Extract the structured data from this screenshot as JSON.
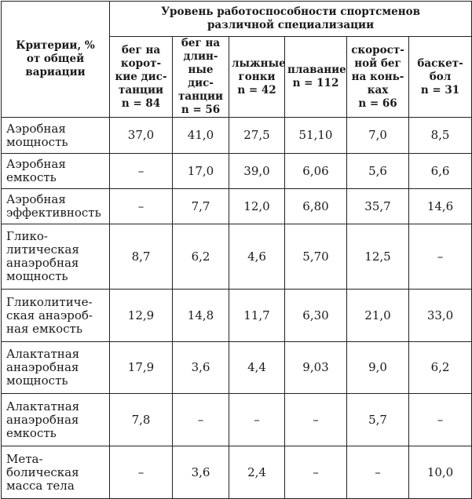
{
  "table": {
    "criteria_header": "Критерии, % от общей вариации",
    "group_header": "Уровень работоспособности спортсменов различной специализации",
    "columns": [
      {
        "label": "бег на корот-кие дис-танции",
        "n": "n = 84"
      },
      {
        "label": "бег на длин-ные дис-танции",
        "n": "n = 56"
      },
      {
        "label": "лыжные гонки",
        "n": "n = 42"
      },
      {
        "label": "плавание",
        "n": "n = 112"
      },
      {
        "label": "скорост-ной бег на конь-ках",
        "n": "n = 66"
      },
      {
        "label": "баскет-бол",
        "n": "n = 31"
      }
    ],
    "rows": [
      {
        "criterion": "Аэробная мощность",
        "values": [
          "37,0",
          "41,0",
          "27,5",
          "51,10",
          "7,0",
          "8,5"
        ]
      },
      {
        "criterion": "Аэробная емкость",
        "values": [
          "–",
          "17,0",
          "39,0",
          "6,06",
          "5,6",
          "6,6"
        ]
      },
      {
        "criterion": "Аэробная эффективность",
        "values": [
          "–",
          "7,7",
          "12,0",
          "6,80",
          "35,7",
          "14,6"
        ]
      },
      {
        "criterion": "Глико-литическая анаэробная мощность",
        "values": [
          "8,7",
          "6,2",
          "4,6",
          "5,70",
          "12,5",
          "–"
        ]
      },
      {
        "criterion": "Гликолитиче-ская анаэроб-ная емкость",
        "values": [
          "12,9",
          "14,8",
          "11,7",
          "6,30",
          "21,0",
          "33,0"
        ]
      },
      {
        "criterion": "Алактатная анаэробная мощность",
        "values": [
          "17,9",
          "3,6",
          "4,4",
          "9,03",
          "9,0",
          "6,2"
        ]
      },
      {
        "criterion": "Алактатная анаэробная емкость",
        "values": [
          "7,8",
          "–",
          "–",
          "–",
          "5,7",
          "–"
        ]
      },
      {
        "criterion": "Мета-болическая масса тела",
        "values": [
          "–",
          "3,6",
          "2,4",
          "–",
          "–",
          "10,0"
        ]
      }
    ]
  }
}
